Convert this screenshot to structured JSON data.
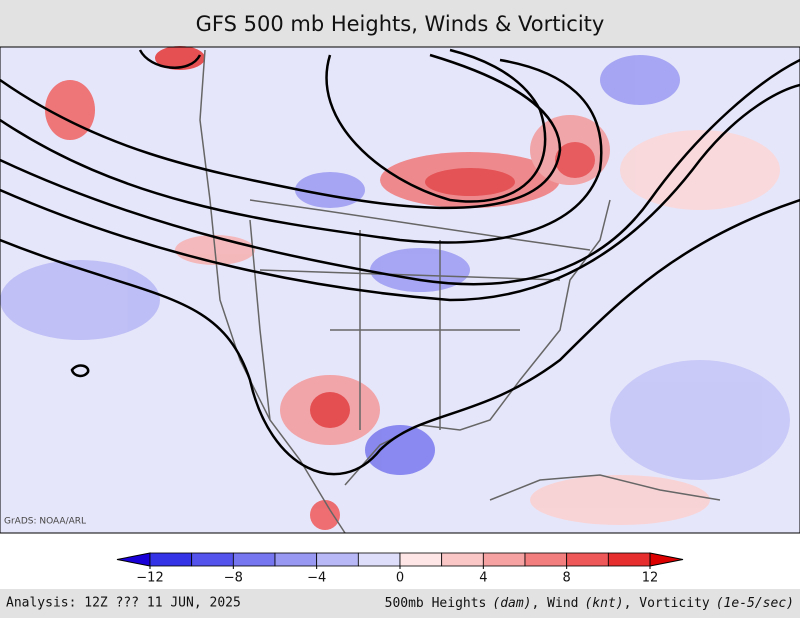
{
  "header": {
    "title": "GFS 500 mb Heights, Winds & Vorticity"
  },
  "map": {
    "credit": "GrADS: NOAA/ARL"
  },
  "colorbar": {
    "lim": [
      -12,
      12
    ],
    "bounds": [
      -12,
      -10,
      -8,
      -6,
      -4,
      -2,
      0,
      2,
      4,
      6,
      8,
      10,
      12
    ],
    "colors": [
      "#1a00d8",
      "#3434e6",
      "#5454ec",
      "#7676f0",
      "#9898f3",
      "#b8b8f6",
      "#dedefb",
      "#ffe6e6",
      "#fbc6c6",
      "#f6a2a2",
      "#f27e7e",
      "#ee5858",
      "#e62e2e",
      "#dd0000"
    ],
    "ticks": [
      {
        "value": -12,
        "label": "−12"
      },
      {
        "value": -8,
        "label": "−8"
      },
      {
        "value": -4,
        "label": "−4"
      },
      0,
      4,
      8,
      12
    ]
  },
  "footer": {
    "left": "Analysis: 12Z ??? 11 JUN, 2025",
    "right": [
      "500mb Heights",
      "(dam)",
      ", Wind",
      "(knt)",
      ", Vorticity",
      "(1e-5/sec)"
    ]
  }
}
